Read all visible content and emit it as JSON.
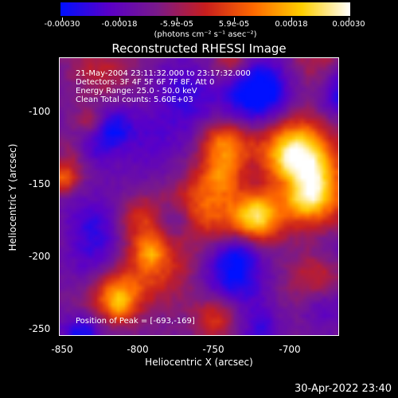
{
  "colorbar": {
    "tick_labels": [
      "-0.00030",
      "-0.00018",
      "-5.9e-05",
      "5.9e-05",
      "0.00018",
      "0.00030"
    ],
    "unit": "(photons cm⁻² s⁻¹ asec⁻²)",
    "colors": [
      "#0010ff",
      "#5a00c8",
      "#7a1a8a",
      "#c81e1e",
      "#ff6a00",
      "#ffd000",
      "#ffffff"
    ]
  },
  "title": "Reconstructed RHESSI Image",
  "annotations": [
    "21-May-2004 23:11:32.000 to 23:17:32.000",
    "Detectors: 3F 4F 5F 6F 7F 8F, Att 0",
    "Energy Range: 25.0 - 50.0 keV",
    "Clean     Total counts: 5.60E+03"
  ],
  "peak_label": "Position of Peak = [-693,-169]",
  "axes": {
    "xlabel": "Heliocentric X (arcsec)",
    "ylabel": "Heliocentric Y (arcsec)",
    "xticks": [
      "-850",
      "-800",
      "-750",
      "-700"
    ],
    "yticks": [
      "-100",
      "-150",
      "-200",
      "-250"
    ]
  },
  "timestamp": "30-Apr-2022 23:40"
}
